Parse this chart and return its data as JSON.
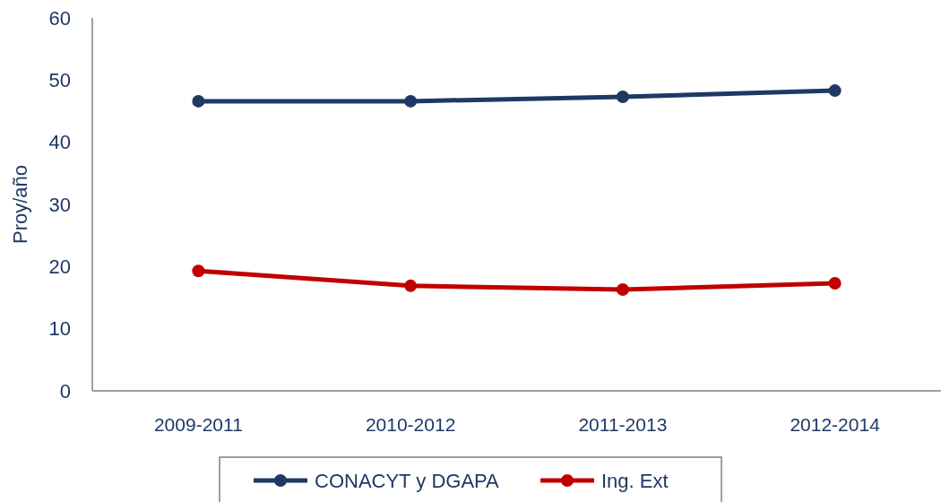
{
  "chart_data": {
    "type": "line",
    "ylabel": "Proy/año",
    "categories": [
      "2009-2011",
      "2010-2012",
      "2011-2013",
      "2012-2014"
    ],
    "series": [
      {
        "name": "CONACYT y DGAPA",
        "color": "#1f3864",
        "values": [
          46.6,
          46.6,
          47.3,
          48.3
        ]
      },
      {
        "name": "Ing. Ext",
        "color": "#c00000",
        "values": [
          19.3,
          16.9,
          16.3,
          17.3
        ]
      }
    ],
    "ylim": [
      0,
      60
    ],
    "yticks": [
      0,
      10,
      20,
      30,
      40,
      50,
      60
    ],
    "grid": false,
    "legend": "bottom",
    "marker": "circle",
    "line_style": "solid"
  }
}
